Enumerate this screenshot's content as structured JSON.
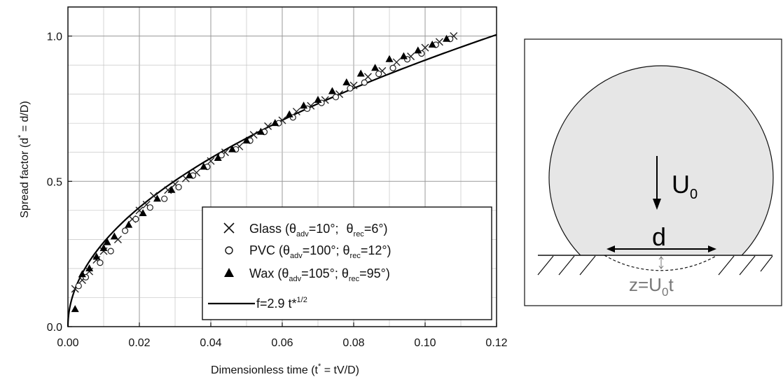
{
  "chart_data": {
    "type": "scatter",
    "title": "",
    "xlabel": "Dimensionless time (t * = tV/D)",
    "ylabel": "Spread factor (d * = d/D)",
    "xlim": [
      0,
      0.12
    ],
    "ylim": [
      0,
      1.1
    ],
    "x_ticks": [
      0.0,
      0.02,
      0.04,
      0.06,
      0.08,
      0.1,
      0.12
    ],
    "x_tick_labels": [
      "0.00",
      "0.02",
      "0.04",
      "0.06",
      "0.08",
      "0.10",
      "0.12"
    ],
    "y_ticks": [
      0.0,
      0.5,
      1.0
    ],
    "y_tick_labels": [
      "0.0",
      "0.5",
      "1.0"
    ],
    "grid": true,
    "legend_position": "bottom-right",
    "series": [
      {
        "name": "Glass",
        "name_full": "Glass (θadv=10°; θrec=6°)",
        "marker": "x",
        "points": [
          [
            0.002,
            0.13
          ],
          [
            0.004,
            0.16
          ],
          [
            0.006,
            0.19
          ],
          [
            0.008,
            0.23
          ],
          [
            0.01,
            0.26
          ],
          [
            0.014,
            0.3
          ],
          [
            0.018,
            0.37
          ],
          [
            0.02,
            0.4
          ],
          [
            0.022,
            0.42
          ],
          [
            0.024,
            0.45
          ],
          [
            0.028,
            0.47
          ],
          [
            0.03,
            0.49
          ],
          [
            0.033,
            0.51
          ],
          [
            0.036,
            0.53
          ],
          [
            0.04,
            0.57
          ],
          [
            0.044,
            0.6
          ],
          [
            0.048,
            0.62
          ],
          [
            0.052,
            0.66
          ],
          [
            0.056,
            0.69
          ],
          [
            0.06,
            0.71
          ],
          [
            0.064,
            0.74
          ],
          [
            0.068,
            0.76
          ],
          [
            0.072,
            0.78
          ],
          [
            0.076,
            0.8
          ],
          [
            0.08,
            0.83
          ],
          [
            0.084,
            0.86
          ],
          [
            0.088,
            0.88
          ],
          [
            0.092,
            0.91
          ],
          [
            0.096,
            0.93
          ],
          [
            0.1,
            0.96
          ],
          [
            0.104,
            0.98
          ],
          [
            0.108,
            1.0
          ]
        ]
      },
      {
        "name": "PVC",
        "name_full": "PVC (θadv=100°; θrec=12°)",
        "marker": "circle-open",
        "points": [
          [
            0.003,
            0.14
          ],
          [
            0.005,
            0.17
          ],
          [
            0.009,
            0.22
          ],
          [
            0.012,
            0.26
          ],
          [
            0.016,
            0.33
          ],
          [
            0.019,
            0.37
          ],
          [
            0.023,
            0.41
          ],
          [
            0.027,
            0.44
          ],
          [
            0.031,
            0.48
          ],
          [
            0.035,
            0.52
          ],
          [
            0.039,
            0.55
          ],
          [
            0.043,
            0.59
          ],
          [
            0.047,
            0.61
          ],
          [
            0.051,
            0.64
          ],
          [
            0.055,
            0.67
          ],
          [
            0.059,
            0.7
          ],
          [
            0.063,
            0.72
          ],
          [
            0.067,
            0.75
          ],
          [
            0.071,
            0.77
          ],
          [
            0.075,
            0.79
          ],
          [
            0.079,
            0.82
          ],
          [
            0.083,
            0.84
          ],
          [
            0.087,
            0.87
          ],
          [
            0.091,
            0.89
          ],
          [
            0.095,
            0.92
          ],
          [
            0.099,
            0.94
          ],
          [
            0.103,
            0.97
          ],
          [
            0.107,
            0.99
          ]
        ]
      },
      {
        "name": "Wax",
        "name_full": "Wax (θadv=105°; θrec=95°)",
        "marker": "triangle-filled",
        "points": [
          [
            0.002,
            0.06
          ],
          [
            0.004,
            0.18
          ],
          [
            0.006,
            0.2
          ],
          [
            0.008,
            0.24
          ],
          [
            0.01,
            0.27
          ],
          [
            0.011,
            0.29
          ],
          [
            0.013,
            0.31
          ],
          [
            0.017,
            0.35
          ],
          [
            0.021,
            0.39
          ],
          [
            0.025,
            0.44
          ],
          [
            0.029,
            0.47
          ],
          [
            0.034,
            0.52
          ],
          [
            0.038,
            0.55
          ],
          [
            0.042,
            0.58
          ],
          [
            0.046,
            0.61
          ],
          [
            0.05,
            0.64
          ],
          [
            0.054,
            0.67
          ],
          [
            0.058,
            0.7
          ],
          [
            0.062,
            0.73
          ],
          [
            0.066,
            0.76
          ],
          [
            0.07,
            0.78
          ],
          [
            0.074,
            0.81
          ],
          [
            0.078,
            0.84
          ],
          [
            0.082,
            0.87
          ],
          [
            0.086,
            0.89
          ],
          [
            0.09,
            0.92
          ],
          [
            0.094,
            0.93
          ],
          [
            0.098,
            0.95
          ],
          [
            0.102,
            0.97
          ],
          [
            0.106,
            0.99
          ]
        ]
      },
      {
        "name": "f=2.9 t*1/2",
        "type": "line",
        "formula": "f=2.9 t*^(1/2)",
        "coefficient": 2.9
      }
    ]
  },
  "legend": {
    "glass": {
      "name": "Glass (",
      "adv": "=10°; ",
      "rec": "=6°)"
    },
    "pvc": {
      "name": "PVC (",
      "adv": "=100°; ",
      "rec": "=12°)"
    },
    "wax": {
      "name": "Wax (",
      "adv": "=105°; ",
      "rec": "=95°)"
    },
    "fit": {
      "text": "f=2.9 t*",
      "exp": "1/2"
    },
    "theta": "θ",
    "adv_sub": "adv",
    "rec_sub": "rec"
  },
  "axes": {
    "x_label_main": "Dimensionless time (t",
    "x_label_star": "*",
    "x_label_rest": " = tV/D)",
    "y_label_main": "Spread factor (d",
    "y_label_star": "*",
    "y_label_rest": " = d/D)"
  },
  "diagram": {
    "velocity_label": "U",
    "velocity_sub": "0",
    "diameter_label": "d",
    "z_label_pre": "z=U",
    "z_label_sub": "0",
    "z_label_post": "t",
    "drop_fill": "#e6e6e6"
  }
}
